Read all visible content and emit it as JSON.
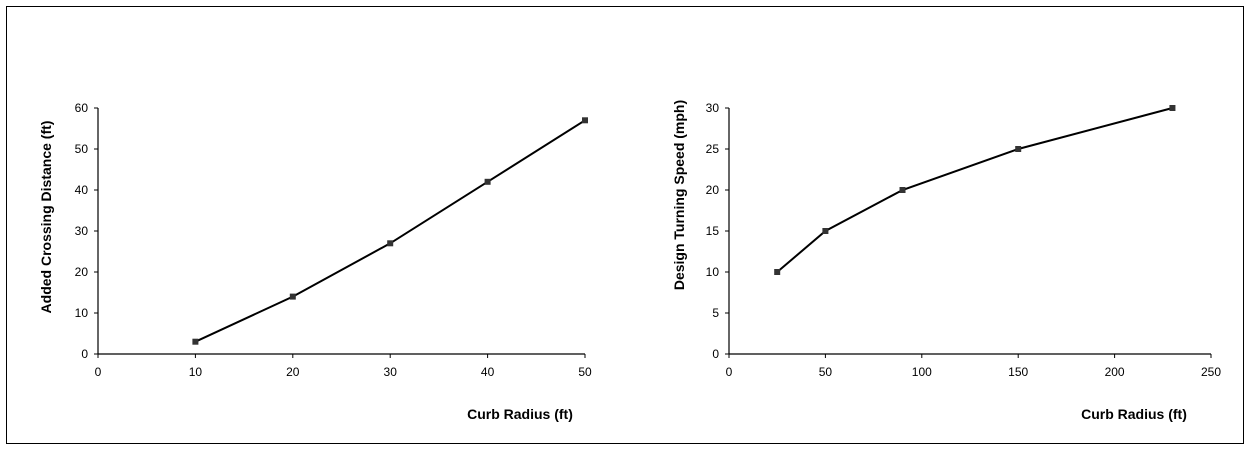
{
  "chart_data": [
    {
      "type": "line",
      "title": "",
      "xlabel": "Curb Radius (ft)",
      "ylabel": "Added Crossing Distance (ft)",
      "xlim": [
        0,
        50
      ],
      "ylim": [
        0,
        60
      ],
      "xticks": [
        0,
        10,
        20,
        30,
        40,
        50
      ],
      "yticks": [
        0,
        10,
        20,
        30,
        40,
        50,
        60
      ],
      "grid": false,
      "legend": "none",
      "series": [
        {
          "color": "#000000",
          "marker": "square",
          "points": [
            {
              "x": 10,
              "y": 3
            },
            {
              "x": 20,
              "y": 14
            },
            {
              "x": 30,
              "y": 27
            },
            {
              "x": 40,
              "y": 42
            },
            {
              "x": 50,
              "y": 57
            }
          ]
        }
      ]
    },
    {
      "type": "line",
      "title": "",
      "xlabel": "Curb Radius (ft)",
      "ylabel": "Design Turning Speed (mph)",
      "xlim": [
        0,
        250
      ],
      "ylim": [
        0,
        30
      ],
      "xticks": [
        0,
        50,
        100,
        150,
        200,
        250
      ],
      "yticks": [
        0,
        5,
        10,
        15,
        20,
        25,
        30
      ],
      "grid": false,
      "legend": "none",
      "series": [
        {
          "color": "#000000",
          "marker": "square",
          "points": [
            {
              "x": 25,
              "y": 10
            },
            {
              "x": 50,
              "y": 15
            },
            {
              "x": 90,
              "y": 20
            },
            {
              "x": 150,
              "y": 25
            },
            {
              "x": 230,
              "y": 30
            }
          ]
        }
      ]
    }
  ]
}
